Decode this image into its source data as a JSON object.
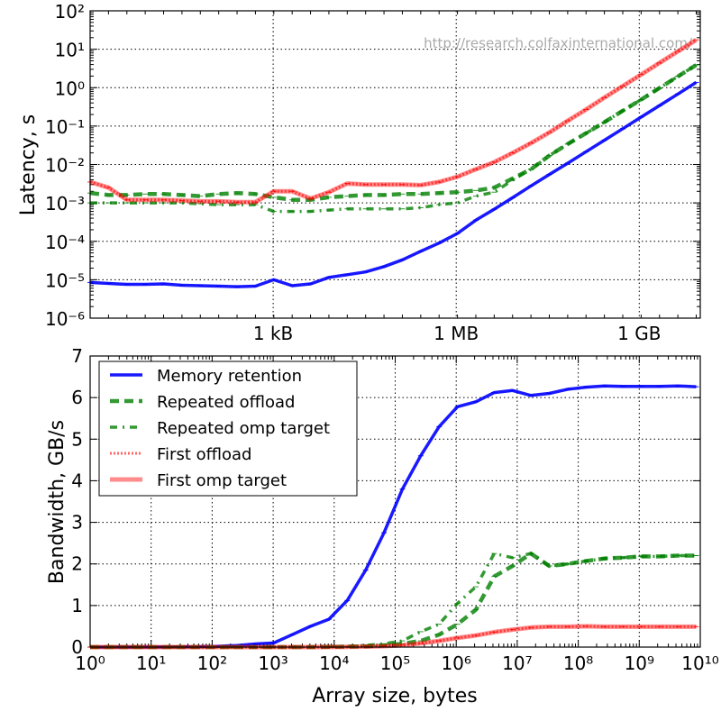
{
  "colors": {
    "memory": "#0000ff",
    "repeated": "#008000",
    "first": "#ff0000"
  },
  "chart_data": [
    {
      "type": "line",
      "title": "",
      "watermark": "http://research.colfaxinternational.com/",
      "xlabel": "",
      "ylabel": "Latency, s",
      "xscale": "log2",
      "yscale": "log",
      "xlim_exp10": [
        0,
        9.935
      ],
      "ylim": [
        1e-06,
        100
      ],
      "grid": true,
      "x_ticks": [
        {
          "value": 1000,
          "label": "1 kB"
        },
        {
          "value": 1000000,
          "label": "1 MB"
        },
        {
          "value": 1000000000,
          "label": "1 GB"
        }
      ],
      "y_ticks": [
        {
          "exp": -6,
          "label": "10⁻⁶"
        },
        {
          "exp": -5,
          "label": "10⁻⁵"
        },
        {
          "exp": -4,
          "label": "10⁻⁴"
        },
        {
          "exp": -3,
          "label": "10⁻³"
        },
        {
          "exp": -2,
          "label": "10⁻²"
        },
        {
          "exp": -1,
          "label": "10⁻¹"
        },
        {
          "exp": 0,
          "label": "10⁰"
        },
        {
          "exp": 1,
          "label": "10¹"
        },
        {
          "exp": 2,
          "label": "10²"
        }
      ],
      "x_log2": [
        0,
        1,
        2,
        3,
        4,
        5,
        6,
        7,
        8,
        9,
        10,
        11,
        12,
        13,
        14,
        15,
        16,
        17,
        18,
        19,
        20,
        21,
        22,
        23,
        24,
        25,
        26,
        27,
        28,
        29,
        30,
        31,
        32,
        33
      ],
      "series": [
        {
          "name": "Memory retention",
          "values": [
            8.5e-06,
            8e-06,
            7.6e-06,
            7.6e-06,
            7.8e-06,
            7.2e-06,
            7e-06,
            6.8e-06,
            6.6e-06,
            6.8e-06,
            1e-05,
            7e-06,
            7.8e-06,
            1.15e-05,
            1.35e-05,
            1.6e-05,
            2.2e-05,
            3.3e-05,
            5.5e-05,
            9e-05,
            0.00016,
            0.000355,
            0.000685,
            0.00136,
            0.00277,
            0.0055,
            0.0108,
            0.0215,
            0.0427,
            0.0855,
            0.171,
            0.342,
            0.684,
            1.37
          ]
        },
        {
          "name": "Repeated offload",
          "values": [
            0.0018,
            0.0016,
            0.0016,
            0.0017,
            0.0017,
            0.0016,
            0.0015,
            0.0017,
            0.0018,
            0.0017,
            0.0014,
            0.0012,
            0.0012,
            0.0014,
            0.0015,
            0.0016,
            0.0016,
            0.0017,
            0.0017,
            0.0018,
            0.0019,
            0.0021,
            0.0025,
            0.0043,
            0.0075,
            0.017,
            0.034,
            0.065,
            0.126,
            0.25,
            0.49,
            0.98,
            1.96,
            3.9
          ]
        },
        {
          "name": "Repeated omp target",
          "values": [
            0.001,
            0.001,
            0.001,
            0.001,
            0.001,
            0.001,
            0.00095,
            0.0009,
            0.0009,
            0.0009,
            0.0006,
            0.0006,
            0.0006,
            0.00065,
            0.0007,
            0.0007,
            0.0007,
            0.0007,
            0.00075,
            0.0009,
            0.001,
            0.0015,
            0.0019,
            0.0039,
            0.0075,
            0.017,
            0.034,
            0.065,
            0.126,
            0.25,
            0.49,
            0.98,
            1.96,
            3.9
          ]
        },
        {
          "name": "First offload",
          "values": [
            0.0035,
            0.0025,
            0.0012,
            0.0012,
            0.0012,
            0.00115,
            0.0011,
            0.0011,
            0.00105,
            0.00105,
            0.002,
            0.002,
            0.0013,
            0.0019,
            0.0032,
            0.003,
            0.003,
            0.003,
            0.0029,
            0.0035,
            0.0048,
            0.0075,
            0.0115,
            0.02,
            0.036,
            0.068,
            0.137,
            0.27,
            0.55,
            1.1,
            2.2,
            4.4,
            8.8,
            17.5
          ]
        },
        {
          "name": "First omp target",
          "values": [
            0.0035,
            0.0025,
            0.0012,
            0.0012,
            0.0012,
            0.00115,
            0.0011,
            0.0011,
            0.00105,
            0.00105,
            0.002,
            0.002,
            0.0013,
            0.0019,
            0.0032,
            0.003,
            0.003,
            0.003,
            0.0029,
            0.0035,
            0.0048,
            0.0075,
            0.0115,
            0.02,
            0.036,
            0.068,
            0.137,
            0.27,
            0.55,
            1.1,
            2.2,
            4.4,
            8.8,
            17.5
          ]
        }
      ]
    },
    {
      "type": "line",
      "title": "",
      "xlabel": "Array size, bytes",
      "ylabel": "Bandwidth, GB/s",
      "xscale": "log",
      "yscale": "linear",
      "xlim": [
        1,
        10000000000.0
      ],
      "ylim": [
        0,
        7
      ],
      "grid": true,
      "legend": "top-left",
      "x_ticks": [
        {
          "exp": 0,
          "label": "10⁰"
        },
        {
          "exp": 1,
          "label": "10¹"
        },
        {
          "exp": 2,
          "label": "10²"
        },
        {
          "exp": 3,
          "label": "10³"
        },
        {
          "exp": 4,
          "label": "10⁴"
        },
        {
          "exp": 5,
          "label": "10⁵"
        },
        {
          "exp": 6,
          "label": "10⁶"
        },
        {
          "exp": 7,
          "label": "10⁷"
        },
        {
          "exp": 8,
          "label": "10⁸"
        },
        {
          "exp": 9,
          "label": "10⁹"
        },
        {
          "exp": 10,
          "label": "10¹⁰"
        }
      ],
      "y_ticks": [
        {
          "value": 0,
          "label": "0"
        },
        {
          "value": 1,
          "label": "1"
        },
        {
          "value": 2,
          "label": "2"
        },
        {
          "value": 3,
          "label": "3"
        },
        {
          "value": 4,
          "label": "4"
        },
        {
          "value": 5,
          "label": "5"
        },
        {
          "value": 6,
          "label": "6"
        },
        {
          "value": 7,
          "label": "7"
        }
      ],
      "x_log2": [
        0,
        1,
        2,
        3,
        4,
        5,
        6,
        7,
        8,
        9,
        10,
        11,
        12,
        13,
        14,
        15,
        16,
        17,
        18,
        19,
        20,
        21,
        22,
        23,
        24,
        25,
        26,
        27,
        28,
        29,
        30,
        31,
        32,
        33
      ],
      "series": [
        {
          "name": "Memory retention",
          "values": [
            0,
            0,
            0,
            0,
            0.002,
            0.004,
            0.009,
            0.019,
            0.039,
            0.075,
            0.1,
            0.3,
            0.5,
            0.67,
            1.12,
            1.85,
            2.75,
            3.8,
            4.6,
            5.3,
            5.78,
            5.9,
            6.12,
            6.17,
            6.05,
            6.1,
            6.2,
            6.25,
            6.28,
            6.27,
            6.27,
            6.27,
            6.28,
            6.26
          ]
        },
        {
          "name": "Repeated offload",
          "values": [
            0,
            0,
            0,
            0,
            0,
            0,
            0,
            0,
            0,
            0,
            0,
            0,
            0,
            0.005,
            0.01,
            0.02,
            0.04,
            0.08,
            0.15,
            0.3,
            0.55,
            0.9,
            1.7,
            1.95,
            2.25,
            1.95,
            2.0,
            2.07,
            2.13,
            2.15,
            2.18,
            2.18,
            2.2,
            2.2
          ]
        },
        {
          "name": "Repeated omp target",
          "values": [
            0,
            0,
            0,
            0,
            0,
            0,
            0,
            0,
            0,
            0,
            0,
            0,
            0,
            0.01,
            0.02,
            0.04,
            0.08,
            0.15,
            0.37,
            0.55,
            1.05,
            1.45,
            2.25,
            2.15,
            2.25,
            1.95,
            2.0,
            2.07,
            2.13,
            2.15,
            2.18,
            2.18,
            2.2,
            2.2
          ]
        },
        {
          "name": "First offload",
          "values": [
            0,
            0,
            0,
            0,
            0,
            0,
            0,
            0,
            0,
            0,
            0,
            0,
            0,
            0.002,
            0.005,
            0.011,
            0.022,
            0.044,
            0.09,
            0.15,
            0.22,
            0.28,
            0.36,
            0.42,
            0.47,
            0.49,
            0.49,
            0.5,
            0.49,
            0.49,
            0.49,
            0.49,
            0.49,
            0.49
          ]
        },
        {
          "name": "First omp target",
          "values": [
            0,
            0,
            0,
            0,
            0,
            0,
            0,
            0,
            0,
            0,
            0,
            0,
            0,
            0.002,
            0.005,
            0.011,
            0.022,
            0.044,
            0.09,
            0.15,
            0.22,
            0.28,
            0.36,
            0.42,
            0.47,
            0.49,
            0.49,
            0.5,
            0.49,
            0.49,
            0.49,
            0.49,
            0.49,
            0.49
          ]
        }
      ]
    }
  ]
}
